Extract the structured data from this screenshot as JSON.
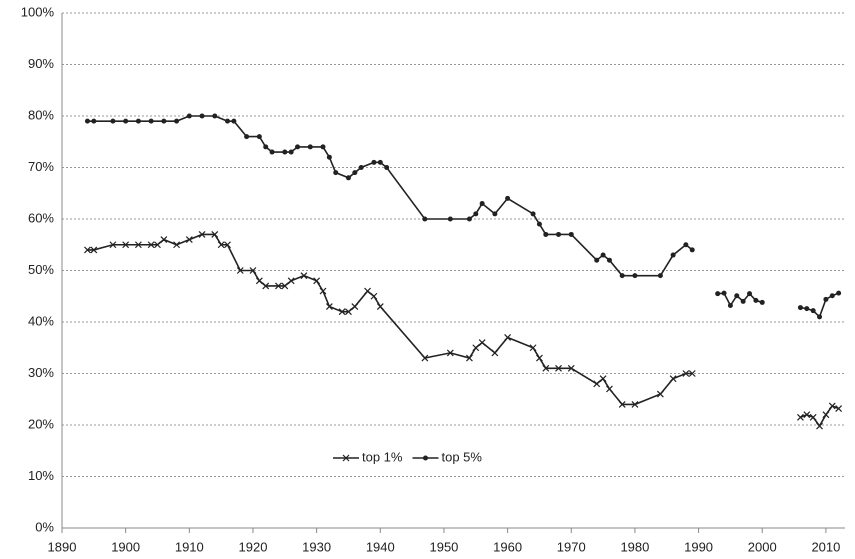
{
  "chart_data": {
    "type": "line",
    "series": [
      {
        "name": "top 1%",
        "color": "#222222",
        "marker": "x",
        "x": [
          1894,
          1895,
          1898,
          1900,
          1902,
          1904,
          1905,
          1906,
          1908,
          1910,
          1912,
          1914,
          1915,
          1916,
          1918,
          1920,
          1921,
          1922,
          1924,
          1925,
          1926,
          1928,
          1930,
          1931,
          1932,
          1934,
          1935,
          1936,
          1938,
          1939,
          1940,
          1947,
          1951,
          1954,
          1955,
          1956,
          1958,
          1960,
          1964,
          1965,
          1966,
          1968,
          1970,
          1974,
          1975,
          1976,
          1978,
          1980,
          1984,
          1986,
          1988,
          1989,
          1990,
          2006,
          2007,
          2008,
          2009,
          2010,
          2011,
          2012
        ],
        "values": [
          54,
          54,
          55,
          55,
          55,
          55,
          55,
          56,
          55,
          56,
          57,
          57,
          55,
          55,
          50,
          50,
          48,
          47,
          47,
          47,
          48,
          49,
          48,
          46,
          43,
          42,
          42,
          43,
          46,
          45,
          43,
          33,
          34,
          33,
          35,
          36,
          34,
          37,
          35,
          33,
          31,
          31,
          31,
          28,
          29,
          27,
          24,
          24,
          26,
          29,
          30,
          30,
          null,
          21.5,
          22,
          21.5,
          19.8,
          22,
          23.7,
          23.2
        ]
      },
      {
        "name": "top 5%",
        "color": "#222222",
        "marker": "dot",
        "x": [
          1894,
          1895,
          1898,
          1900,
          1902,
          1904,
          1906,
          1908,
          1910,
          1912,
          1914,
          1916,
          1917,
          1919,
          1921,
          1922,
          1923,
          1925,
          1926,
          1927,
          1929,
          1931,
          1932,
          1933,
          1935,
          1936,
          1937,
          1939,
          1940,
          1941,
          1947,
          1951,
          1954,
          1955,
          1956,
          1958,
          1960,
          1964,
          1965,
          1966,
          1968,
          1970,
          1974,
          1975,
          1976,
          1978,
          1980,
          1984,
          1986,
          1988,
          1989,
          1990,
          1993,
          1994,
          1995,
          1996,
          1997,
          1998,
          1999,
          2000,
          2001,
          2006,
          2007,
          2008,
          2009,
          2010,
          2011,
          2012
        ],
        "values": [
          79,
          79,
          79,
          79,
          79,
          79,
          79,
          79,
          80,
          80,
          80,
          79,
          79,
          76,
          76,
          74,
          73,
          73,
          73,
          74,
          74,
          74,
          72,
          69,
          68,
          69,
          70,
          71,
          71,
          70,
          60,
          60,
          60,
          61,
          63,
          61,
          64,
          61,
          59,
          57,
          57,
          57,
          52,
          53,
          52,
          49,
          49,
          49,
          53,
          55,
          54,
          null,
          45.5,
          45.6,
          43.2,
          45.1,
          44,
          45.5,
          44.2,
          43.8,
          null,
          42.8,
          42.6,
          42.2,
          41,
          44.4,
          45.1,
          45.6
        ]
      }
    ],
    "xlim": [
      1890,
      2013
    ],
    "xticks": [
      1890,
      1900,
      1910,
      1920,
      1930,
      1940,
      1950,
      1960,
      1970,
      1980,
      1990,
      2000,
      2010
    ],
    "ylim": [
      0,
      100
    ],
    "yticks": [
      {
        "value": 0,
        "label": "0%"
      },
      {
        "value": 10,
        "label": "10%"
      },
      {
        "value": 20,
        "label": "20%"
      },
      {
        "value": 30,
        "label": "30%"
      },
      {
        "value": 40,
        "label": "40%"
      },
      {
        "value": 50,
        "label": "50%"
      },
      {
        "value": 60,
        "label": "60%"
      },
      {
        "value": 70,
        "label": "70%"
      },
      {
        "value": 80,
        "label": "80%"
      },
      {
        "value": 90,
        "label": "90%"
      },
      {
        "value": 100,
        "label": "100%"
      }
    ],
    "grid": true
  }
}
